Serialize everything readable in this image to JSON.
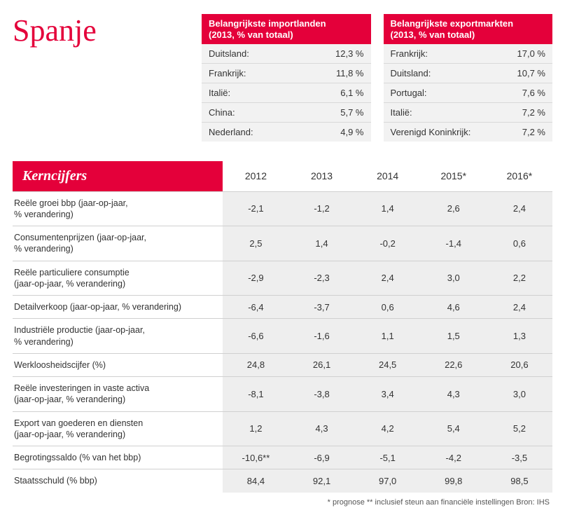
{
  "title": "Spanje",
  "imports": {
    "header": "Belangrijkste importlanden\n(2013, % van totaal)",
    "rows": [
      {
        "country": "Duitsland:",
        "value": "12,3 %"
      },
      {
        "country": "Frankrijk:",
        "value": "11,8 %"
      },
      {
        "country": "Italië:",
        "value": "6,1 %"
      },
      {
        "country": "China:",
        "value": "5,7 %"
      },
      {
        "country": "Nederland:",
        "value": "4,9 %"
      }
    ]
  },
  "exports": {
    "header": "Belangrijkste exportmarkten\n(2013, % van totaal)",
    "rows": [
      {
        "country": "Frankrijk:",
        "value": "17,0 %"
      },
      {
        "country": "Duitsland:",
        "value": "10,7 %"
      },
      {
        "country": "Portugal:",
        "value": "7,6 %"
      },
      {
        "country": "Italië:",
        "value": "7,2 %"
      },
      {
        "country": "Verenigd Koninkrijk:",
        "value": "7,2 %"
      }
    ]
  },
  "kern": {
    "header": "Kerncijfers",
    "years": [
      "2012",
      "2013",
      "2014",
      "2015*",
      "2016*"
    ],
    "rows": [
      {
        "label": "Reële groei bbp (jaar-op-jaar,\n% verandering)",
        "values": [
          "-2,1",
          "-1,2",
          "1,4",
          "2,6",
          "2,4"
        ]
      },
      {
        "label": "Consumentenprijzen (jaar-op-jaar,\n% verandering)",
        "values": [
          "2,5",
          "1,4",
          "-0,2",
          "-1,4",
          "0,6"
        ]
      },
      {
        "label": "Reële particuliere consumptie\n(jaar-op-jaar, % verandering)",
        "values": [
          "-2,9",
          "-2,3",
          "2,4",
          "3,0",
          "2,2"
        ]
      },
      {
        "label": "Detailverkoop (jaar-op-jaar, % verandering)",
        "values": [
          "-6,4",
          "-3,7",
          "0,6",
          "4,6",
          "2,4"
        ]
      },
      {
        "label": "Industriële productie (jaar-op-jaar,\n% verandering)",
        "values": [
          "-6,6",
          "-1,6",
          "1,1",
          "1,5",
          "1,3"
        ]
      },
      {
        "label": "Werkloosheidscijfer (%)",
        "values": [
          "24,8",
          "26,1",
          "24,5",
          "22,6",
          "20,6"
        ]
      },
      {
        "label": "Reële investeringen in vaste activa\n(jaar-op-jaar, % verandering)",
        "values": [
          "-8,1",
          "-3,8",
          "3,4",
          "4,3",
          "3,0"
        ]
      },
      {
        "label": "Export van goederen en diensten\n(jaar-op-jaar, % verandering)",
        "values": [
          "1,2",
          "4,3",
          "4,2",
          "5,4",
          "5,2"
        ]
      },
      {
        "label": "Begrotingssaldo (% van het bbp)",
        "values": [
          "-10,6**",
          "-6,9",
          "-5,1",
          "-4,2",
          "-3,5"
        ]
      },
      {
        "label": "Staatsschuld (% bbp)",
        "values": [
          "84,4",
          "92,1",
          "97,0",
          "99,8",
          "98,5"
        ]
      }
    ]
  },
  "footnote": "* prognose ** inclusief steun aan financiële instellingen Bron: IHS",
  "colors": {
    "accent": "#e4003a",
    "cell_bg": "#eeeeee",
    "mini_cell_bg": "#f2f2f2",
    "border": "#d0d0d0",
    "text": "#333333"
  }
}
